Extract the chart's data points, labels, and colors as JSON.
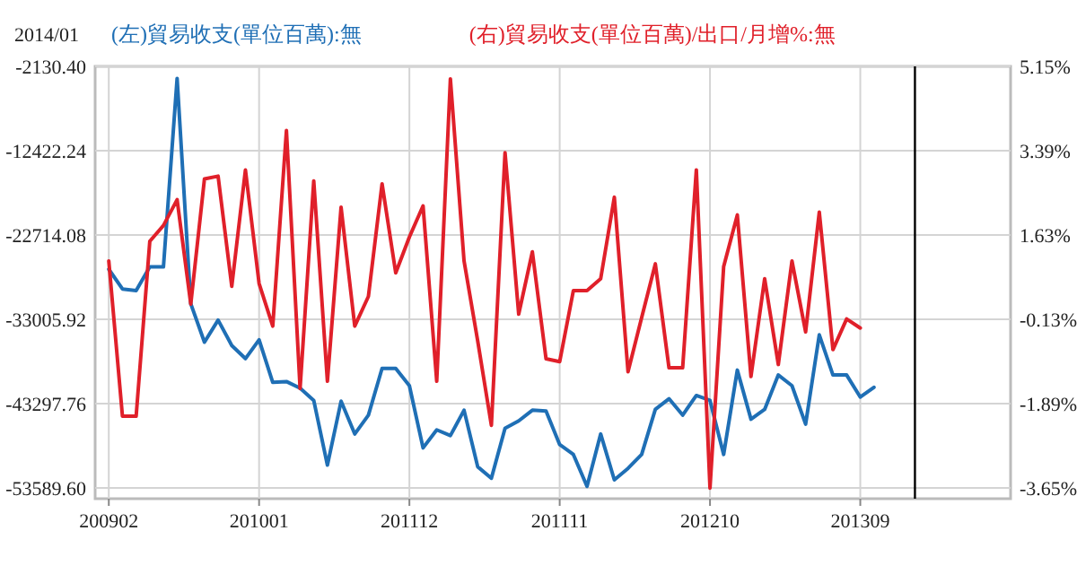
{
  "chart_data": {
    "type": "line",
    "x": [
      "2009-02",
      "2009-03",
      "2009-04",
      "2009-05",
      "2009-06",
      "2009-07",
      "2009-08",
      "2009-09",
      "2009-10",
      "2009-11",
      "2009-12",
      "2010-01",
      "2010-02",
      "2010-03",
      "2010-04",
      "2010-05",
      "2010-06",
      "2010-07",
      "2010-08",
      "2010-09",
      "2010-10",
      "2010-11",
      "2010-12",
      "2011-01",
      "2011-02",
      "2011-03",
      "2011-04",
      "2011-05",
      "2011-06",
      "2011-07",
      "2011-08",
      "2011-09",
      "2011-10",
      "2011-11",
      "2011-12",
      "2012-01",
      "2012-02",
      "2012-03",
      "2012-04",
      "2012-05",
      "2012-06",
      "2012-07",
      "2012-08",
      "2012-09",
      "2012-10",
      "2012-11",
      "2012-12",
      "2013-01",
      "2013-02",
      "2013-03",
      "2013-04",
      "2013-05",
      "2013-06",
      "2013-07",
      "2013-08",
      "2013-09",
      "2013-10"
    ],
    "series": [
      {
        "name": "(左)貿易收支(單位百萬):無",
        "color": "#1f6fb5",
        "values": [
          -26900,
          -29300,
          -29500,
          -26600,
          -26600,
          -3600,
          -31100,
          -35800,
          -33100,
          -36200,
          -37800,
          -35500,
          -40700,
          -40600,
          -41400,
          -42900,
          -50800,
          -43000,
          -47000,
          -44700,
          -39000,
          -39000,
          -41100,
          -48700,
          -46500,
          -47200,
          -44100,
          -51000,
          -52400,
          -46300,
          -45400,
          -44100,
          -44200,
          -48300,
          -49500,
          -53400,
          -47000,
          -52600,
          -51200,
          -49500,
          -44000,
          -42700,
          -44700,
          -42300,
          -42900,
          -49500,
          -39200,
          -45200,
          -44000,
          -39800,
          -41100,
          -45800,
          -34900,
          -39800,
          -39800,
          -42500,
          -41300
        ]
      },
      {
        "name": "(右)貿易收支(單位百萬)/出口/月增%:無",
        "color": "#e0202a",
        "axis": "y2",
        "values": [
          1.09,
          -2.15,
          -2.15,
          1.5,
          1.83,
          2.37,
          0.19,
          2.8,
          2.86,
          0.56,
          2.99,
          0.62,
          -0.27,
          3.81,
          -1.57,
          2.76,
          -1.42,
          2.21,
          -0.27,
          0.35,
          2.7,
          0.84,
          1.59,
          2.24,
          -1.42,
          4.89,
          1.09,
          -0.58,
          -2.34,
          3.35,
          -0.02,
          1.28,
          -0.95,
          -1.01,
          0.47,
          0.47,
          0.72,
          2.42,
          -1.22,
          -0.09,
          1.03,
          -1.14,
          -1.14,
          2.99,
          -3.65,
          0.97,
          2.05,
          -1.32,
          0.72,
          -1.07,
          1.09,
          -0.39,
          2.11,
          -0.76,
          -0.12,
          -0.31,
          null
        ]
      }
    ],
    "xlim": [
      "2009-01",
      "2014-08"
    ],
    "xticks": [
      {
        "value": "2009-02",
        "label": "200902"
      },
      {
        "value": "2010-01",
        "label": "201001"
      },
      {
        "value": "2010-12",
        "label": "201112"
      },
      {
        "value": "2011-11",
        "label": "201111"
      },
      {
        "value": "2012-10",
        "label": "201210"
      },
      {
        "value": "2013-09",
        "label": "201309"
      }
    ],
    "ylim": [
      -54900,
      -2130.4
    ],
    "yticks": [
      {
        "value": -2130.4,
        "label": "-2130.40"
      },
      {
        "value": -12422.24,
        "label": "-12422.24"
      },
      {
        "value": -22714.08,
        "label": "-22714.08"
      },
      {
        "value": -33005.92,
        "label": "-33005.92"
      },
      {
        "value": -43297.76,
        "label": "-43297.76"
      },
      {
        "value": -53589.6,
        "label": "-53589.60"
      }
    ],
    "y2lim": [
      -3.87,
      5.15
    ],
    "y2ticks": [
      {
        "value": 5.15,
        "label": "5.15%"
      },
      {
        "value": 3.39,
        "label": "3.39%"
      },
      {
        "value": 1.63,
        "label": "1.63%"
      },
      {
        "value": -0.13,
        "label": "-0.13%"
      },
      {
        "value": -1.89,
        "label": "-1.89%"
      },
      {
        "value": -3.65,
        "label": "-3.65%"
      }
    ],
    "ref_lines": [
      {
        "axis": "x",
        "value": "2014-01",
        "label": "2014/01",
        "color": "#000000"
      }
    ],
    "grid": true,
    "legend": "top",
    "marker": "none",
    "line_style": "solid"
  }
}
